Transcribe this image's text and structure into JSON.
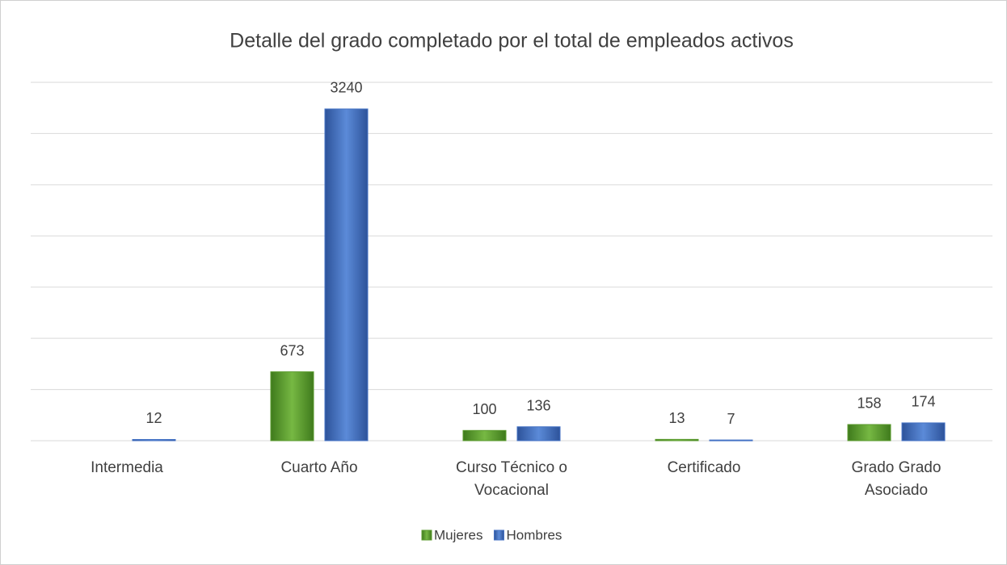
{
  "chart_data": {
    "type": "bar",
    "title": "Detalle del grado completado por el total de empleados activos",
    "categories": [
      "Intermedia",
      "Cuarto Año",
      "Curso Técnico o Vocacional",
      "Certificado",
      "Grado Grado Asociado"
    ],
    "series": [
      {
        "name": "Mujeres",
        "color": "#5b9b2f",
        "values": [
          null,
          673,
          100,
          13,
          158
        ]
      },
      {
        "name": "Hombres",
        "color": "#4472c4",
        "values": [
          12,
          3240,
          136,
          7,
          174
        ]
      }
    ],
    "ylim": [
      0,
      3500
    ],
    "yticks": [
      0,
      500,
      1000,
      1500,
      2000,
      2500,
      3000,
      3500
    ],
    "grid": true,
    "legend": "bottom"
  }
}
